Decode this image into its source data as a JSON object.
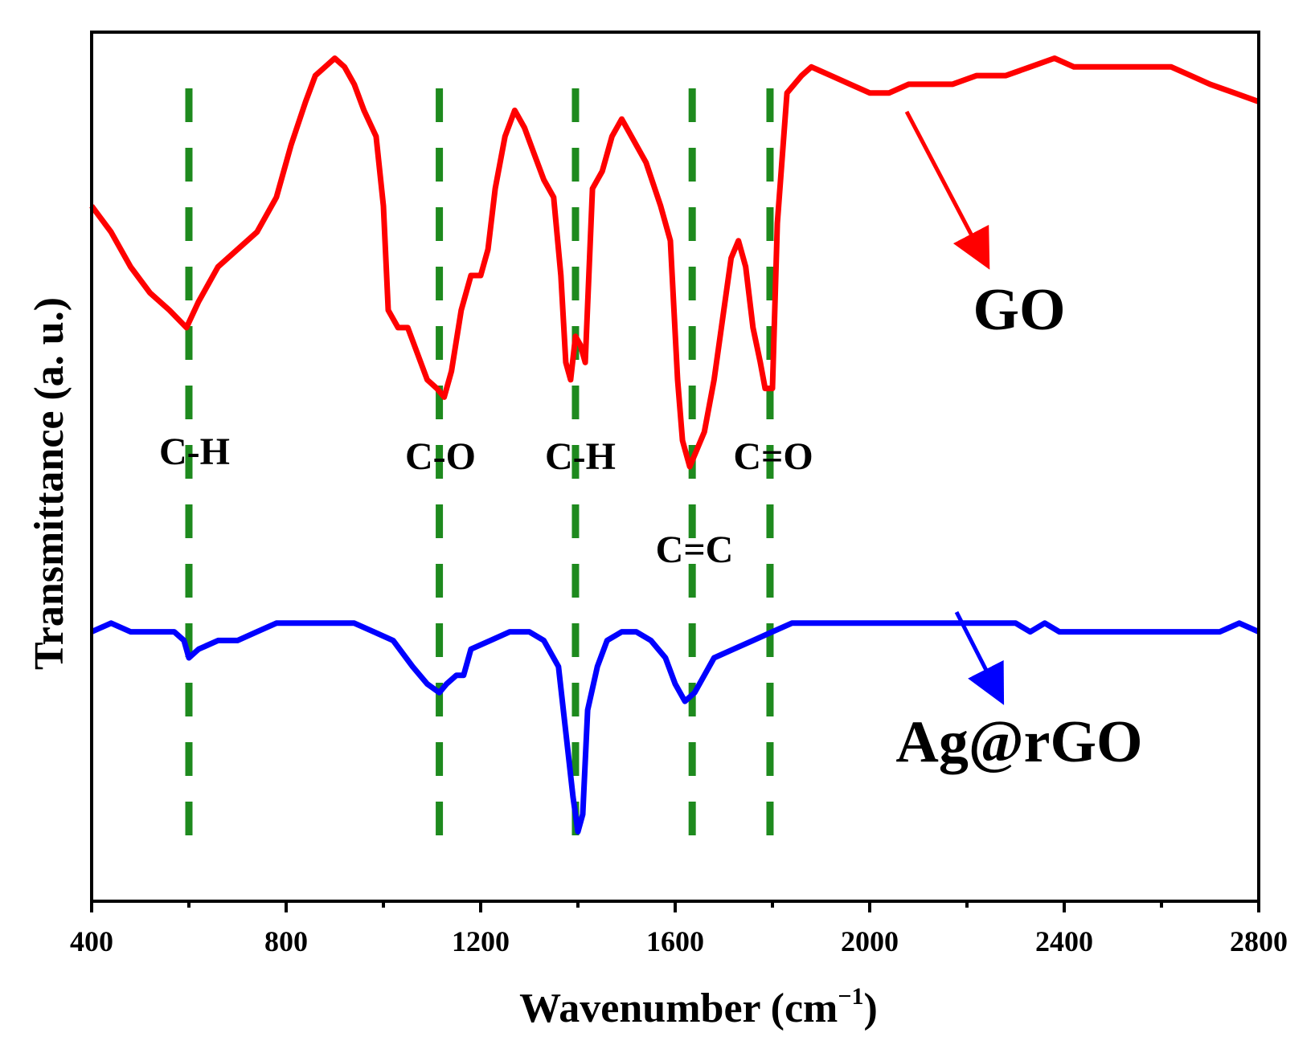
{
  "chart_data": {
    "type": "line",
    "title": "",
    "xlabel": "Wavenumber (cm",
    "xlabel_sup": "−1",
    "xlabel_close": ")",
    "ylabel": "Transmittance (a. u.)",
    "xlim": [
      400,
      2800
    ],
    "ylim": [
      0,
      100
    ],
    "x_ticks": [
      400,
      800,
      1200,
      1600,
      2000,
      2400,
      2800
    ],
    "y_ticks_shown": false,
    "series": [
      {
        "name": "GO",
        "color": "#ff0000",
        "points": [
          [
            400,
            80
          ],
          [
            440,
            77
          ],
          [
            480,
            73
          ],
          [
            520,
            70
          ],
          [
            560,
            68
          ],
          [
            595,
            66
          ],
          [
            620,
            69
          ],
          [
            660,
            73
          ],
          [
            700,
            75
          ],
          [
            740,
            77
          ],
          [
            780,
            81
          ],
          [
            810,
            87
          ],
          [
            840,
            92
          ],
          [
            860,
            95
          ],
          [
            880,
            96
          ],
          [
            900,
            97
          ],
          [
            920,
            96
          ],
          [
            940,
            94
          ],
          [
            960,
            91
          ],
          [
            985,
            88
          ],
          [
            1000,
            80
          ],
          [
            1010,
            68
          ],
          [
            1030,
            66
          ],
          [
            1050,
            66
          ],
          [
            1070,
            63
          ],
          [
            1090,
            60
          ],
          [
            1110,
            59
          ],
          [
            1125,
            58
          ],
          [
            1140,
            61
          ],
          [
            1160,
            68
          ],
          [
            1180,
            72
          ],
          [
            1200,
            72
          ],
          [
            1215,
            75
          ],
          [
            1230,
            82
          ],
          [
            1250,
            88
          ],
          [
            1270,
            91
          ],
          [
            1290,
            89
          ],
          [
            1310,
            86
          ],
          [
            1330,
            83
          ],
          [
            1350,
            81
          ],
          [
            1365,
            72
          ],
          [
            1375,
            62
          ],
          [
            1385,
            60
          ],
          [
            1395,
            65
          ],
          [
            1405,
            64
          ],
          [
            1415,
            62
          ],
          [
            1430,
            82
          ],
          [
            1450,
            84
          ],
          [
            1470,
            88
          ],
          [
            1490,
            90
          ],
          [
            1510,
            88
          ],
          [
            1540,
            85
          ],
          [
            1570,
            80
          ],
          [
            1590,
            76
          ],
          [
            1605,
            60
          ],
          [
            1615,
            53
          ],
          [
            1630,
            50
          ],
          [
            1645,
            52
          ],
          [
            1660,
            54
          ],
          [
            1680,
            60
          ],
          [
            1700,
            68
          ],
          [
            1715,
            74
          ],
          [
            1730,
            76
          ],
          [
            1745,
            73
          ],
          [
            1760,
            66
          ],
          [
            1775,
            62
          ],
          [
            1785,
            59
          ],
          [
            1800,
            59
          ],
          [
            1810,
            78
          ],
          [
            1830,
            93
          ],
          [
            1860,
            95
          ],
          [
            1880,
            96
          ],
          [
            1920,
            95
          ],
          [
            1960,
            94
          ],
          [
            2000,
            93
          ],
          [
            2040,
            93
          ],
          [
            2080,
            94
          ],
          [
            2120,
            94
          ],
          [
            2170,
            94
          ],
          [
            2220,
            95
          ],
          [
            2280,
            95
          ],
          [
            2330,
            96
          ],
          [
            2380,
            97
          ],
          [
            2420,
            96
          ],
          [
            2500,
            96
          ],
          [
            2580,
            96
          ],
          [
            2620,
            96
          ],
          [
            2660,
            95
          ],
          [
            2700,
            94
          ],
          [
            2750,
            93
          ],
          [
            2800,
            92
          ]
        ]
      },
      {
        "name": "Ag@rGO",
        "color": "#0000ff",
        "points": [
          [
            400,
            31
          ],
          [
            440,
            32
          ],
          [
            480,
            31
          ],
          [
            520,
            31
          ],
          [
            570,
            31
          ],
          [
            590,
            30
          ],
          [
            600,
            28
          ],
          [
            620,
            29
          ],
          [
            660,
            30
          ],
          [
            700,
            30
          ],
          [
            740,
            31
          ],
          [
            780,
            32
          ],
          [
            820,
            32
          ],
          [
            860,
            32
          ],
          [
            900,
            32
          ],
          [
            940,
            32
          ],
          [
            980,
            31
          ],
          [
            1020,
            30
          ],
          [
            1060,
            27
          ],
          [
            1090,
            25
          ],
          [
            1115,
            24
          ],
          [
            1130,
            25
          ],
          [
            1150,
            26
          ],
          [
            1165,
            26
          ],
          [
            1180,
            29
          ],
          [
            1220,
            30
          ],
          [
            1260,
            31
          ],
          [
            1300,
            31
          ],
          [
            1330,
            30
          ],
          [
            1360,
            27
          ],
          [
            1380,
            17
          ],
          [
            1390,
            12
          ],
          [
            1400,
            8
          ],
          [
            1410,
            10
          ],
          [
            1420,
            22
          ],
          [
            1440,
            27
          ],
          [
            1460,
            30
          ],
          [
            1490,
            31
          ],
          [
            1520,
            31
          ],
          [
            1550,
            30
          ],
          [
            1580,
            28
          ],
          [
            1600,
            25
          ],
          [
            1620,
            23
          ],
          [
            1640,
            24
          ],
          [
            1660,
            26
          ],
          [
            1680,
            28
          ],
          [
            1720,
            29
          ],
          [
            1760,
            30
          ],
          [
            1800,
            31
          ],
          [
            1840,
            32
          ],
          [
            1880,
            32
          ],
          [
            1920,
            32
          ],
          [
            1960,
            32
          ],
          [
            2000,
            32
          ],
          [
            2050,
            32
          ],
          [
            2100,
            32
          ],
          [
            2150,
            32
          ],
          [
            2200,
            32
          ],
          [
            2260,
            32
          ],
          [
            2300,
            32
          ],
          [
            2330,
            31
          ],
          [
            2360,
            32
          ],
          [
            2390,
            31
          ],
          [
            2420,
            31
          ],
          [
            2460,
            31
          ],
          [
            2500,
            31
          ],
          [
            2560,
            31
          ],
          [
            2600,
            31
          ],
          [
            2640,
            31
          ],
          [
            2680,
            31
          ],
          [
            2720,
            31
          ],
          [
            2760,
            32
          ],
          [
            2800,
            31
          ]
        ]
      }
    ],
    "reference_lines": [
      {
        "x": 600,
        "label": "C-H"
      },
      {
        "x": 1115,
        "label": "C-O"
      },
      {
        "x": 1395,
        "label": "C-H"
      },
      {
        "x": 1635,
        "label": "C=C"
      },
      {
        "x": 1795,
        "label": "C=O"
      }
    ],
    "reference_line_color": "#1e8a1e",
    "annotations": [
      {
        "text": "GO",
        "points_to_series": "GO"
      },
      {
        "text": "Ag@rGO",
        "points_to_series": "Ag@rGO"
      }
    ]
  }
}
